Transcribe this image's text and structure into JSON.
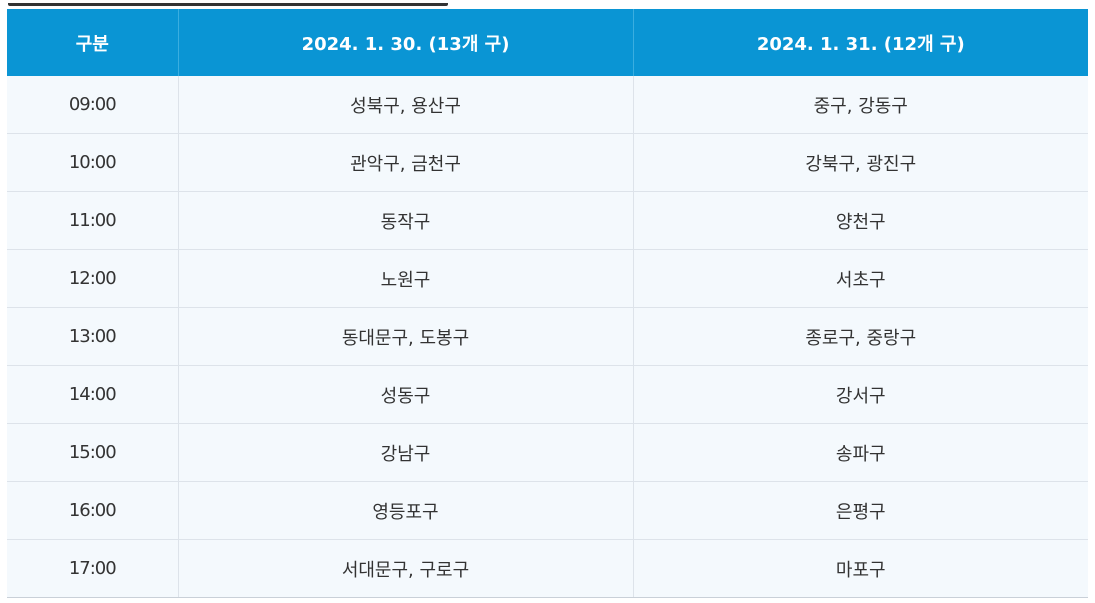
{
  "table": {
    "headers": [
      "구분",
      "2024. 1. 30. (13개 구)",
      "2024. 1. 31. (12개 구)"
    ],
    "rows": [
      {
        "time": "09:00",
        "day1": "성북구, 용산구",
        "day2": "중구, 강동구"
      },
      {
        "time": "10:00",
        "day1": "관악구, 금천구",
        "day2": "강북구, 광진구"
      },
      {
        "time": "11:00",
        "day1": "동작구",
        "day2": "양천구"
      },
      {
        "time": "12:00",
        "day1": "노원구",
        "day2": "서초구"
      },
      {
        "time": "13:00",
        "day1": "동대문구, 도봉구",
        "day2": "종로구, 중랑구"
      },
      {
        "time": "14:00",
        "day1": "성동구",
        "day2": "강서구"
      },
      {
        "time": "15:00",
        "day1": "강남구",
        "day2": "송파구"
      },
      {
        "time": "16:00",
        "day1": "영등포구",
        "day2": "은평구"
      },
      {
        "time": "17:00",
        "day1": "서대문구, 구로구",
        "day2": "마포구"
      }
    ]
  },
  "colors": {
    "header_background": "#0a95d4",
    "header_text": "#ffffff",
    "row_background": "#f4f9fd",
    "row_text": "#333333",
    "grid_line": "#dde3ea"
  }
}
